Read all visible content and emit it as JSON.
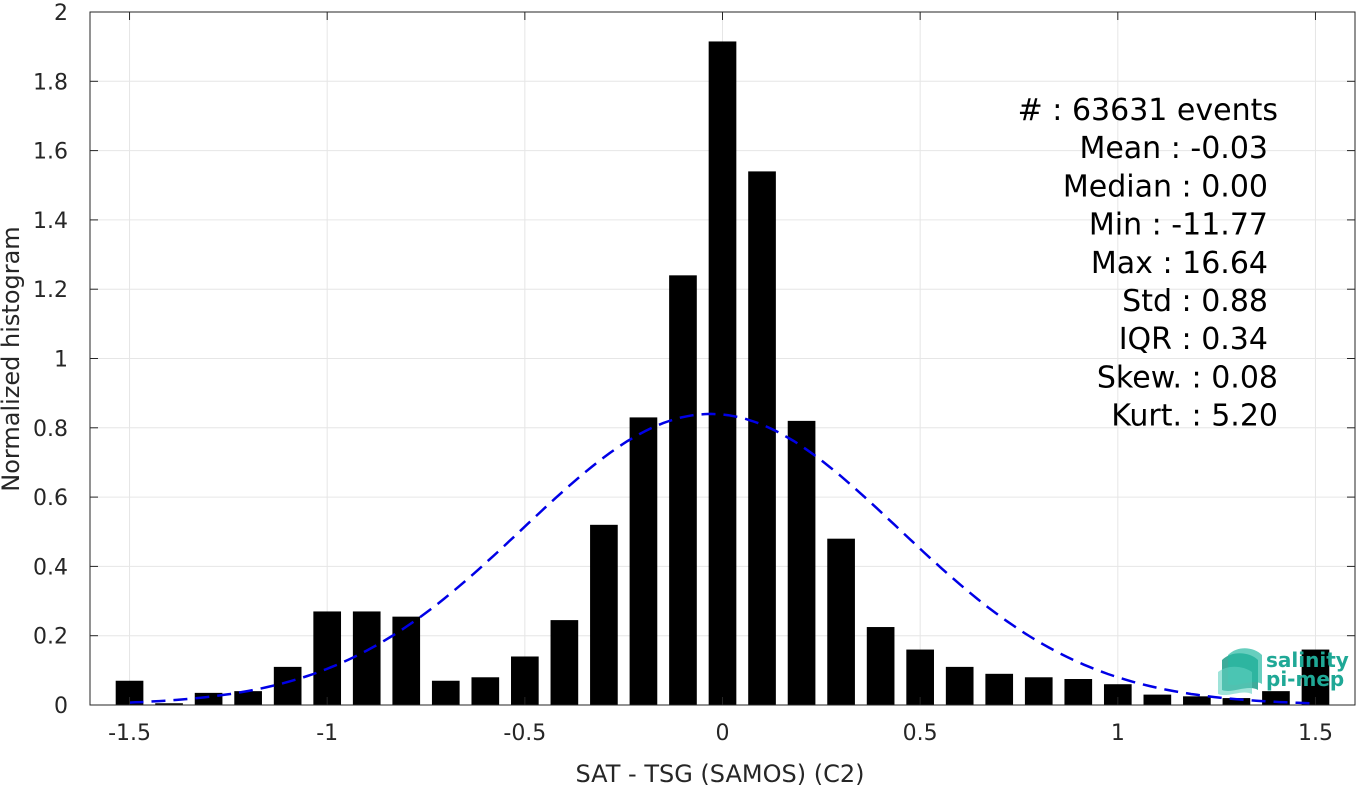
{
  "chart_data": {
    "type": "bar",
    "xlabel": "SAT - TSG (SAMOS) (C2)",
    "ylabel": "Normalized histogram",
    "xlim": [
      -1.6,
      1.6
    ],
    "ylim": [
      0,
      2
    ],
    "grid": true,
    "x_ticks": [
      -1.5,
      -1,
      -0.5,
      0,
      0.5,
      1,
      1.5
    ],
    "x_tick_labels": [
      "-1.5",
      "-1",
      "-0.5",
      "0",
      "0.5",
      "1",
      "1.5"
    ],
    "y_ticks": [
      0,
      0.2,
      0.4,
      0.6,
      0.8,
      1,
      1.2,
      1.4,
      1.6,
      1.8,
      2
    ],
    "y_tick_labels": [
      "0",
      "0.2",
      "0.4",
      "0.6",
      "0.8",
      "1",
      "1.2",
      "1.4",
      "1.6",
      "1.8",
      "2"
    ],
    "bar_width": 0.07,
    "bar_color": "#000000",
    "bars": {
      "x": [
        -1.5,
        -1.4,
        -1.3,
        -1.2,
        -1.1,
        -1.0,
        -0.9,
        -0.8,
        -0.7,
        -0.6,
        -0.5,
        -0.4,
        -0.3,
        -0.2,
        -0.1,
        0.0,
        0.1,
        0.2,
        0.3,
        0.4,
        0.5,
        0.6,
        0.7,
        0.8,
        0.9,
        1.0,
        1.1,
        1.2,
        1.3,
        1.4,
        1.5
      ],
      "values": [
        0.07,
        0.005,
        0.035,
        0.04,
        0.11,
        0.27,
        0.27,
        0.255,
        0.07,
        0.08,
        0.14,
        0.245,
        0.52,
        0.83,
        1.24,
        1.915,
        1.54,
        0.82,
        0.48,
        0.225,
        0.16,
        0.11,
        0.09,
        0.08,
        0.075,
        0.06,
        0.03,
        0.025,
        0.02,
        0.04,
        0.16
      ]
    },
    "fit_curve": {
      "style": "dashed",
      "color": "#0000e6",
      "mean": -0.03,
      "std": 0.475,
      "peak": 0.84,
      "x_range": [
        -1.5,
        1.5
      ]
    },
    "stats": [
      "#  : 63631 events",
      "Mean : -0.03",
      "Median : 0.00",
      "Min : -11.77",
      "Max : 16.64",
      "Std : 0.88",
      "IQR : 0.34",
      "Skew. : 0.08",
      "Kurt. : 5.20"
    ]
  },
  "logo": {
    "line1": "salinity",
    "line2": "pi-mep",
    "color": "#1fa896"
  }
}
